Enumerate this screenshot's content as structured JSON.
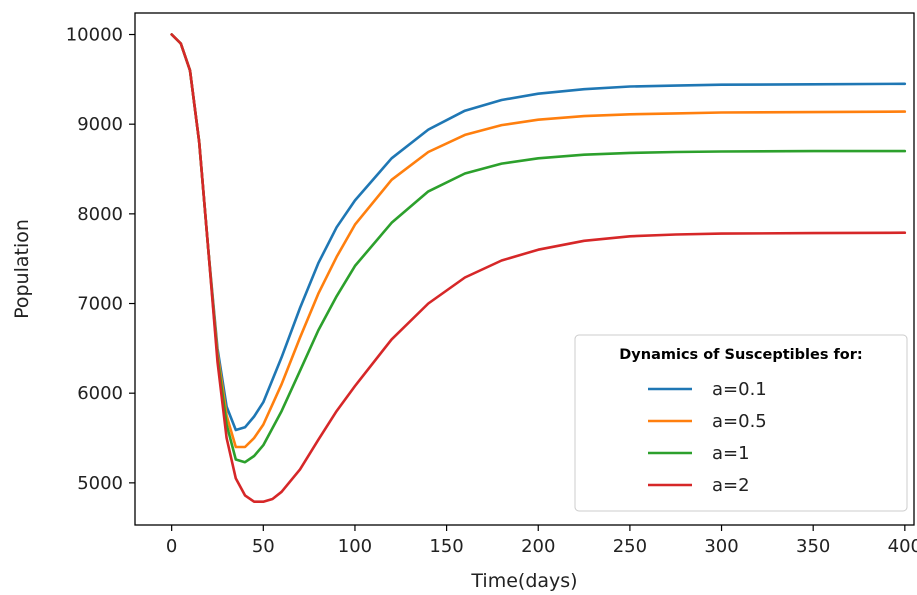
{
  "chart_data": {
    "type": "line",
    "title": "",
    "xlabel": "Time(days)",
    "ylabel": "Population",
    "xlim": [
      -20,
      405
    ],
    "ylim": [
      4530,
      10240
    ],
    "xticks": [
      0,
      50,
      100,
      150,
      200,
      250,
      300,
      350,
      400
    ],
    "yticks": [
      5000,
      6000,
      7000,
      8000,
      9000,
      10000
    ],
    "grid": false,
    "legend": {
      "title": "Dynamics of Susceptibles for:",
      "placement": "lower-right"
    },
    "series": [
      {
        "name": "a=0.1",
        "color": "#1f77b4",
        "x": [
          0,
          5,
          10,
          15,
          20,
          25,
          30,
          35,
          40,
          45,
          50,
          60,
          70,
          80,
          90,
          100,
          120,
          140,
          160,
          180,
          200,
          225,
          250,
          275,
          300,
          350,
          400
        ],
        "y": [
          10000,
          9900,
          9600,
          8800,
          7600,
          6500,
          5850,
          5590,
          5620,
          5740,
          5900,
          6400,
          6950,
          7450,
          7850,
          8150,
          8620,
          8940,
          9150,
          9270,
          9340,
          9390,
          9420,
          9430,
          9440,
          9445,
          9450
        ]
      },
      {
        "name": "a=0.5",
        "color": "#ff7f0e",
        "x": [
          0,
          5,
          10,
          15,
          20,
          25,
          30,
          35,
          40,
          45,
          50,
          60,
          70,
          80,
          90,
          100,
          120,
          140,
          160,
          180,
          200,
          225,
          250,
          275,
          300,
          350,
          400
        ],
        "y": [
          10000,
          9900,
          9600,
          8800,
          7600,
          6450,
          5750,
          5400,
          5400,
          5500,
          5650,
          6100,
          6620,
          7110,
          7520,
          7880,
          8380,
          8690,
          8880,
          8990,
          9050,
          9090,
          9110,
          9120,
          9130,
          9135,
          9140
        ]
      },
      {
        "name": "a=1",
        "color": "#2ca02c",
        "x": [
          0,
          5,
          10,
          15,
          20,
          25,
          30,
          35,
          40,
          45,
          50,
          60,
          70,
          80,
          90,
          100,
          120,
          140,
          160,
          180,
          200,
          225,
          250,
          275,
          300,
          350,
          400
        ],
        "y": [
          10000,
          9900,
          9600,
          8800,
          7600,
          6400,
          5650,
          5260,
          5230,
          5300,
          5420,
          5800,
          6250,
          6700,
          7080,
          7420,
          7900,
          8250,
          8450,
          8560,
          8620,
          8660,
          8680,
          8690,
          8695,
          8700,
          8700
        ]
      },
      {
        "name": "a=2",
        "color": "#d62728",
        "x": [
          0,
          5,
          10,
          15,
          20,
          25,
          30,
          35,
          40,
          45,
          50,
          55,
          60,
          70,
          80,
          90,
          100,
          120,
          140,
          160,
          180,
          200,
          225,
          250,
          275,
          300,
          350,
          400
        ],
        "y": [
          10000,
          9900,
          9600,
          8800,
          7600,
          6350,
          5500,
          5050,
          4860,
          4790,
          4790,
          4820,
          4900,
          5150,
          5480,
          5800,
          6080,
          6600,
          7000,
          7290,
          7480,
          7600,
          7700,
          7750,
          7770,
          7780,
          7785,
          7790
        ]
      }
    ]
  }
}
